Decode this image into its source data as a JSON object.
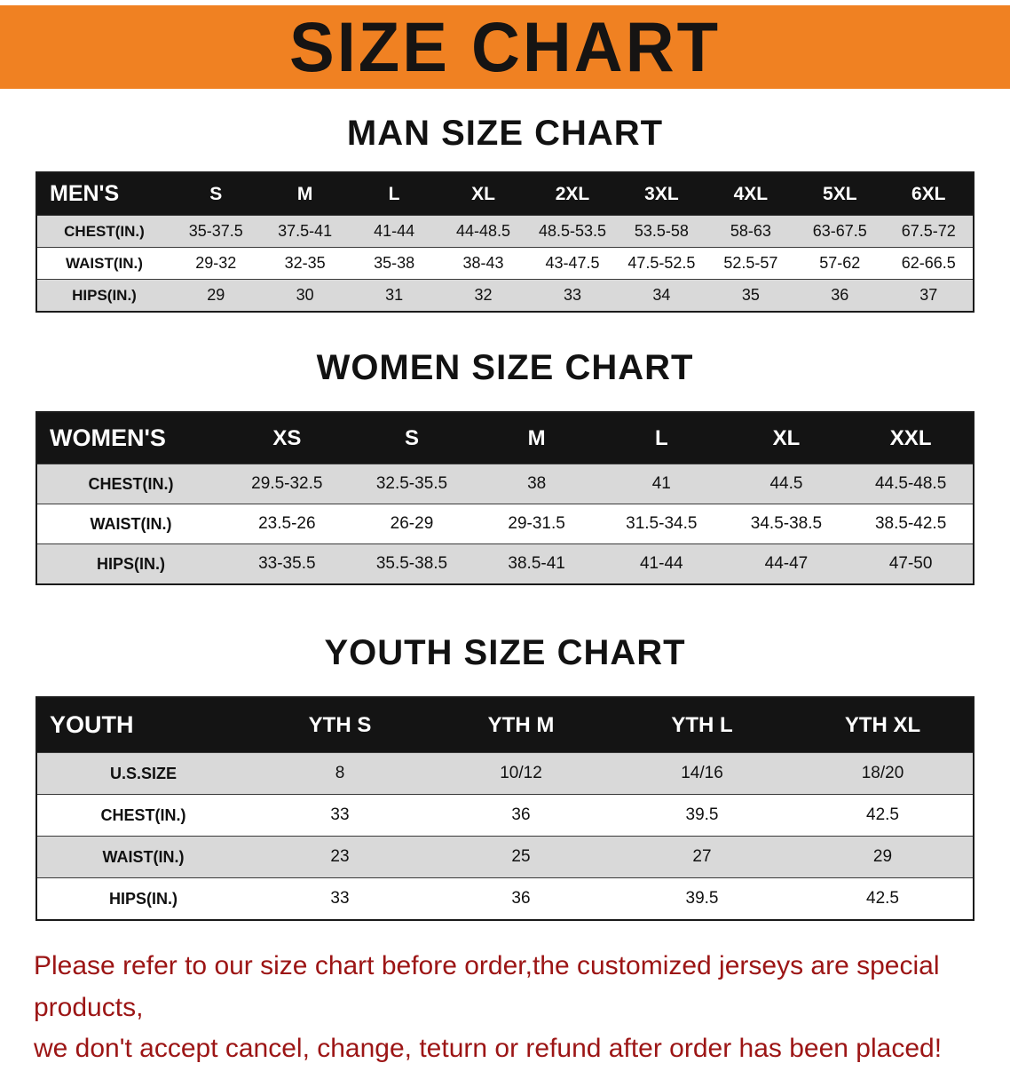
{
  "banner": {
    "title": "SIZE CHART"
  },
  "colors": {
    "banner_bg": "#f08122",
    "table_header_bg": "#141414",
    "row_stripe": "#d9d9d9",
    "disclaimer_text": "#9c1515"
  },
  "sections": [
    {
      "id": "men",
      "heading": "MAN SIZE CHART",
      "header_label": "MEN'S",
      "columns": [
        "S",
        "M",
        "L",
        "XL",
        "2XL",
        "3XL",
        "4XL",
        "5XL",
        "6XL"
      ],
      "rows": [
        {
          "label": "CHEST(IN.)",
          "values": [
            "35-37.5",
            "37.5-41",
            "41-44",
            "44-48.5",
            "48.5-53.5",
            "53.5-58",
            "58-63",
            "63-67.5",
            "67.5-72"
          ]
        },
        {
          "label": "WAIST(IN.)",
          "values": [
            "29-32",
            "32-35",
            "35-38",
            "38-43",
            "43-47.5",
            "47.5-52.5",
            "52.5-57",
            "57-62",
            "62-66.5"
          ]
        },
        {
          "label": "HIPS(IN.)",
          "values": [
            "29",
            "30",
            "31",
            "32",
            "33",
            "34",
            "35",
            "36",
            "37"
          ]
        }
      ]
    },
    {
      "id": "women",
      "heading": "WOMEN SIZE CHART",
      "header_label": "WOMEN'S",
      "columns": [
        "XS",
        "S",
        "M",
        "L",
        "XL",
        "XXL"
      ],
      "rows": [
        {
          "label": "CHEST(IN.)",
          "values": [
            "29.5-32.5",
            "32.5-35.5",
            "38",
            "41",
            "44.5",
            "44.5-48.5"
          ]
        },
        {
          "label": "WAIST(IN.)",
          "values": [
            "23.5-26",
            "26-29",
            "29-31.5",
            "31.5-34.5",
            "34.5-38.5",
            "38.5-42.5"
          ]
        },
        {
          "label": "HIPS(IN.)",
          "values": [
            "33-35.5",
            "35.5-38.5",
            "38.5-41",
            "41-44",
            "44-47",
            "47-50"
          ]
        }
      ]
    },
    {
      "id": "youth",
      "heading": "YOUTH SIZE CHART",
      "header_label": "YOUTH",
      "columns": [
        "YTH S",
        "YTH M",
        "YTH L",
        "YTH XL"
      ],
      "rows": [
        {
          "label": "U.S.SIZE",
          "values": [
            "8",
            "10/12",
            "14/16",
            "18/20"
          ]
        },
        {
          "label": "CHEST(IN.)",
          "values": [
            "33",
            "36",
            "39.5",
            "42.5"
          ]
        },
        {
          "label": "WAIST(IN.)",
          "values": [
            "23",
            "25",
            "27",
            "29"
          ]
        },
        {
          "label": "HIPS(IN.)",
          "values": [
            "33",
            "36",
            "39.5",
            "42.5"
          ]
        }
      ]
    }
  ],
  "disclaimer": {
    "line1": "Please refer to our size chart before order,the customized jerseys are special products,",
    "line2": "we don't accept cancel, change, teturn or refund after order has been placed!"
  }
}
